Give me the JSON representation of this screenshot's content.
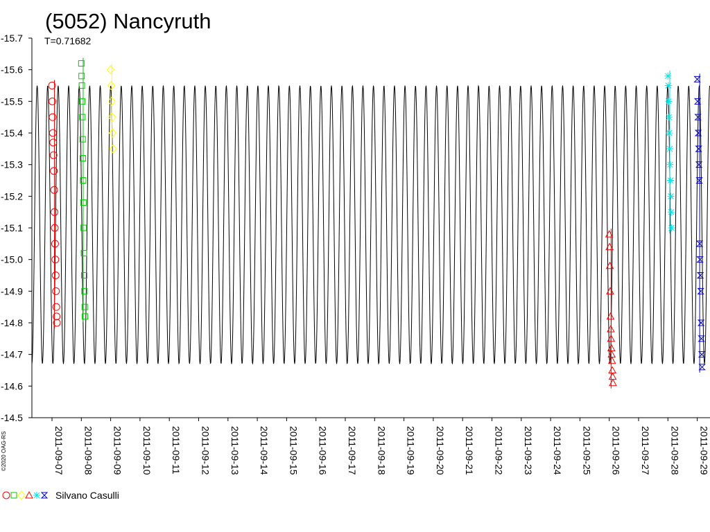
{
  "chart_data": {
    "type": "scatter",
    "title": "(5052) Nancyruth",
    "subtitle": "T=0.71682",
    "credit": "©2020 OAG-RS",
    "legend_label": "Silvano Casulli",
    "ylim": [
      -14.5,
      -15.7
    ],
    "y_ticks": [
      "-15.7",
      "-15.6",
      "-15.5",
      "-15.4",
      "-15.3",
      "-15.2",
      "-15.1",
      "-15.0",
      "-14.9",
      "-14.8",
      "-14.7",
      "-14.6",
      "-14.5"
    ],
    "x_ticks": [
      "2011-09-07",
      "2011-09-08",
      "2011-09-09",
      "2011-09-10",
      "2011-09-11",
      "2011-09-12",
      "2011-09-13",
      "2011-09-14",
      "2011-09-15",
      "2011-09-16",
      "2011-09-17",
      "2011-09-18",
      "2011-09-19",
      "2011-09-20",
      "2011-09-21",
      "2011-09-22",
      "2011-09-23",
      "2011-09-24",
      "2011-09-25",
      "2011-09-26",
      "2011-09-27",
      "2011-09-28",
      "2011-09-29"
    ],
    "xlim": [
      "2011-09-06T00:00",
      "2011-09-30T00:00"
    ],
    "model_curve": {
      "period_hours": 8.6,
      "amplitude_min": -14.67,
      "amplitude_max": -15.55,
      "color": "#000000"
    },
    "series": [
      {
        "color": "#ff0000",
        "marker": "circle",
        "date_from": "2011-09-07T00:00",
        "date_to": "2011-09-07T04:00",
        "values": [
          -15.55,
          -15.5,
          -15.45,
          -15.4,
          -15.37,
          -15.33,
          -15.28,
          -15.22,
          -15.15,
          -15.1,
          -15.05,
          -15.0,
          -14.95,
          -14.9,
          -14.85,
          -14.82,
          -14.8
        ]
      },
      {
        "color": "#00cc00",
        "marker": "square",
        "date_from": "2011-09-08T00:00",
        "date_to": "2011-09-08T03:00",
        "values": [
          -15.62,
          -15.58,
          -15.55,
          -15.5,
          -15.45,
          -15.38,
          -15.32,
          -15.25,
          -15.18,
          -15.1,
          -15.02,
          -14.95,
          -14.9,
          -14.85,
          -14.82
        ]
      },
      {
        "color": "#ffff00",
        "marker": "diamond",
        "date_from": "2011-09-09T00:00",
        "date_to": "2011-09-09T02:00",
        "values": [
          -15.6,
          -15.55,
          -15.5,
          -15.45,
          -15.4,
          -15.35
        ]
      },
      {
        "color": "#ff0000",
        "marker": "triangle",
        "date_from": "2011-09-26T00:00",
        "date_to": "2011-09-26T03:00",
        "values": [
          -15.08,
          -15.04,
          -14.98,
          -14.9,
          -14.82,
          -14.78,
          -14.75,
          -14.72,
          -14.7,
          -14.68,
          -14.65,
          -14.63,
          -14.61
        ]
      },
      {
        "color": "#00e6e6",
        "marker": "star",
        "date_from": "2011-09-28T00:00",
        "date_to": "2011-09-28T03:00",
        "values": [
          -15.58,
          -15.55,
          -15.5,
          -15.45,
          -15.4,
          -15.35,
          -15.3,
          -15.25,
          -15.2,
          -15.15,
          -15.1
        ]
      },
      {
        "color": "#0000cc",
        "marker": "hourglass",
        "date_from": "2011-09-29T00:00",
        "date_to": "2011-09-29T04:00",
        "values": [
          -15.57,
          -15.5,
          -15.45,
          -15.4,
          -15.35,
          -15.3,
          -15.25,
          -15.05,
          -15.0,
          -14.95,
          -14.9,
          -14.8,
          -14.75,
          -14.7,
          -14.66
        ]
      }
    ],
    "grid": false,
    "legend_position": "bottom-left"
  }
}
